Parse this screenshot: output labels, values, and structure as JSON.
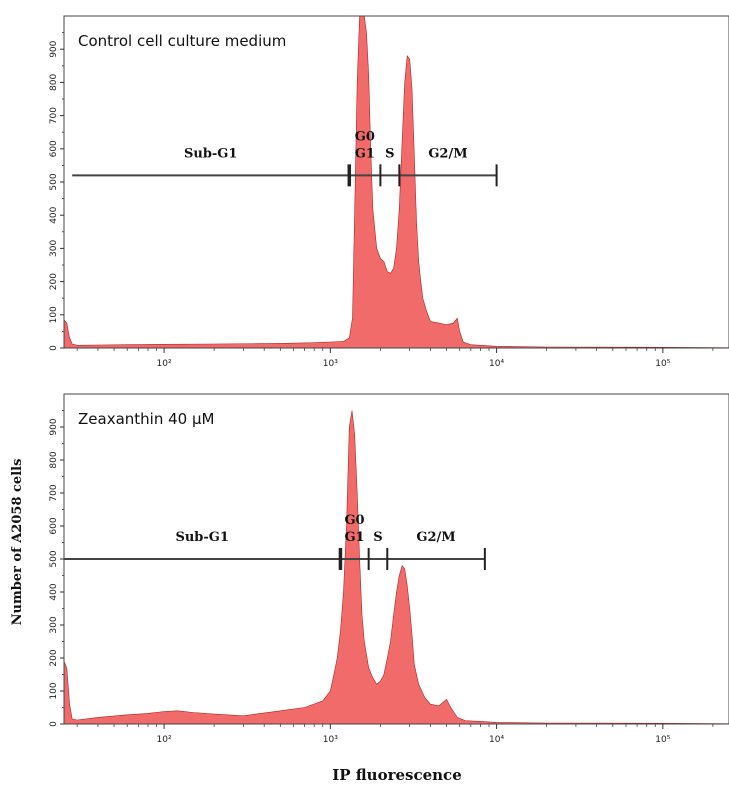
{
  "chart_data": [
    {
      "type": "area",
      "title": "Control cell culture medium",
      "x_scale": "log",
      "xlim": [
        25,
        250000
      ],
      "ylim": [
        0,
        1000
      ],
      "x_ticks": [
        {
          "value": 100,
          "label": "10²"
        },
        {
          "value": 1000,
          "label": "10³"
        },
        {
          "value": 10000,
          "label": "10⁴"
        },
        {
          "value": 100000,
          "label": "10⁵"
        }
      ],
      "y_ticks": [
        0,
        100,
        200,
        300,
        400,
        500,
        600,
        700,
        800,
        900
      ],
      "fill_color": "#f26b6b",
      "stroke_color": "#b02222",
      "series": [
        {
          "x": [
            25,
            26,
            27,
            28,
            30,
            40,
            60,
            100,
            200,
            500,
            800,
            1000,
            1200,
            1300,
            1360,
            1400,
            1450,
            1500,
            1550,
            1600,
            1650,
            1700,
            1750,
            1800,
            1900,
            2000,
            2100,
            2200,
            2300,
            2400,
            2500,
            2600,
            2700,
            2800,
            2900,
            3000,
            3100,
            3200,
            3300,
            3400,
            3500,
            3600,
            3800,
            4000,
            4500,
            5000,
            5500,
            5800,
            6000,
            6300,
            7000,
            8000,
            10000,
            20000,
            100000,
            250000
          ],
          "values": [
            85,
            75,
            30,
            12,
            8,
            9,
            10,
            11,
            12,
            14,
            16,
            18,
            20,
            30,
            90,
            400,
            800,
            1000,
            1000,
            1000,
            950,
            820,
            600,
            420,
            300,
            270,
            260,
            230,
            225,
            240,
            300,
            420,
            620,
            800,
            880,
            870,
            780,
            580,
            380,
            260,
            200,
            150,
            110,
            80,
            75,
            70,
            75,
            90,
            50,
            18,
            10,
            8,
            5,
            3,
            2,
            1
          ]
        }
      ],
      "regions": [
        {
          "label": "Sub-G1",
          "from": 28,
          "to": 1300
        },
        {
          "label": "G0\nG1",
          "from": 1300,
          "to": 2000
        },
        {
          "label": "S",
          "from": 2000,
          "to": 2600
        },
        {
          "label": "G2/M",
          "from": 2600,
          "to": 10000
        }
      ],
      "gate_y": 520
    },
    {
      "type": "area",
      "title": "Zeaxanthin 40 µM",
      "x_scale": "log",
      "xlim": [
        25,
        250000
      ],
      "ylim": [
        0,
        1000
      ],
      "x_ticks": [
        {
          "value": 100,
          "label": "10²"
        },
        {
          "value": 1000,
          "label": "10³"
        },
        {
          "value": 10000,
          "label": "10⁴"
        },
        {
          "value": 100000,
          "label": "10⁵"
        }
      ],
      "y_ticks": [
        0,
        100,
        200,
        300,
        400,
        500,
        600,
        700,
        800,
        900
      ],
      "fill_color": "#f26b6b",
      "stroke_color": "#b02222",
      "series": [
        {
          "x": [
            25,
            26,
            27,
            28,
            30,
            40,
            60,
            80,
            100,
            120,
            150,
            200,
            300,
            500,
            700,
            900,
            1000,
            1050,
            1100,
            1150,
            1200,
            1250,
            1300,
            1350,
            1400,
            1450,
            1500,
            1550,
            1600,
            1700,
            1800,
            1900,
            2000,
            2100,
            2200,
            2300,
            2400,
            2500,
            2600,
            2700,
            2800,
            2900,
            3000,
            3100,
            3200,
            3400,
            3700,
            4000,
            4500,
            5000,
            5300,
            5800,
            6500,
            8000,
            10000,
            20000,
            100000,
            250000
          ],
          "values": [
            190,
            170,
            60,
            15,
            12,
            20,
            28,
            32,
            38,
            40,
            35,
            30,
            25,
            40,
            50,
            70,
            100,
            150,
            200,
            280,
            400,
            600,
            900,
            950,
            880,
            700,
            500,
            330,
            250,
            170,
            140,
            120,
            130,
            150,
            200,
            250,
            330,
            400,
            450,
            480,
            470,
            420,
            350,
            270,
            180,
            120,
            80,
            60,
            55,
            75,
            50,
            20,
            10,
            8,
            5,
            3,
            2,
            1
          ]
        }
      ],
      "regions": [
        {
          "label": "Sub-G1",
          "from": 25,
          "to": 1150
        },
        {
          "label": "G0\nG1",
          "from": 1150,
          "to": 1700
        },
        {
          "label": "S",
          "from": 1700,
          "to": 2200
        },
        {
          "label": "G2/M",
          "from": 2200,
          "to": 8500
        }
      ],
      "gate_y": 500
    }
  ],
  "labels": {
    "xlabel": "IP fluorescence",
    "ylabel": "Number of A2058 cells"
  }
}
